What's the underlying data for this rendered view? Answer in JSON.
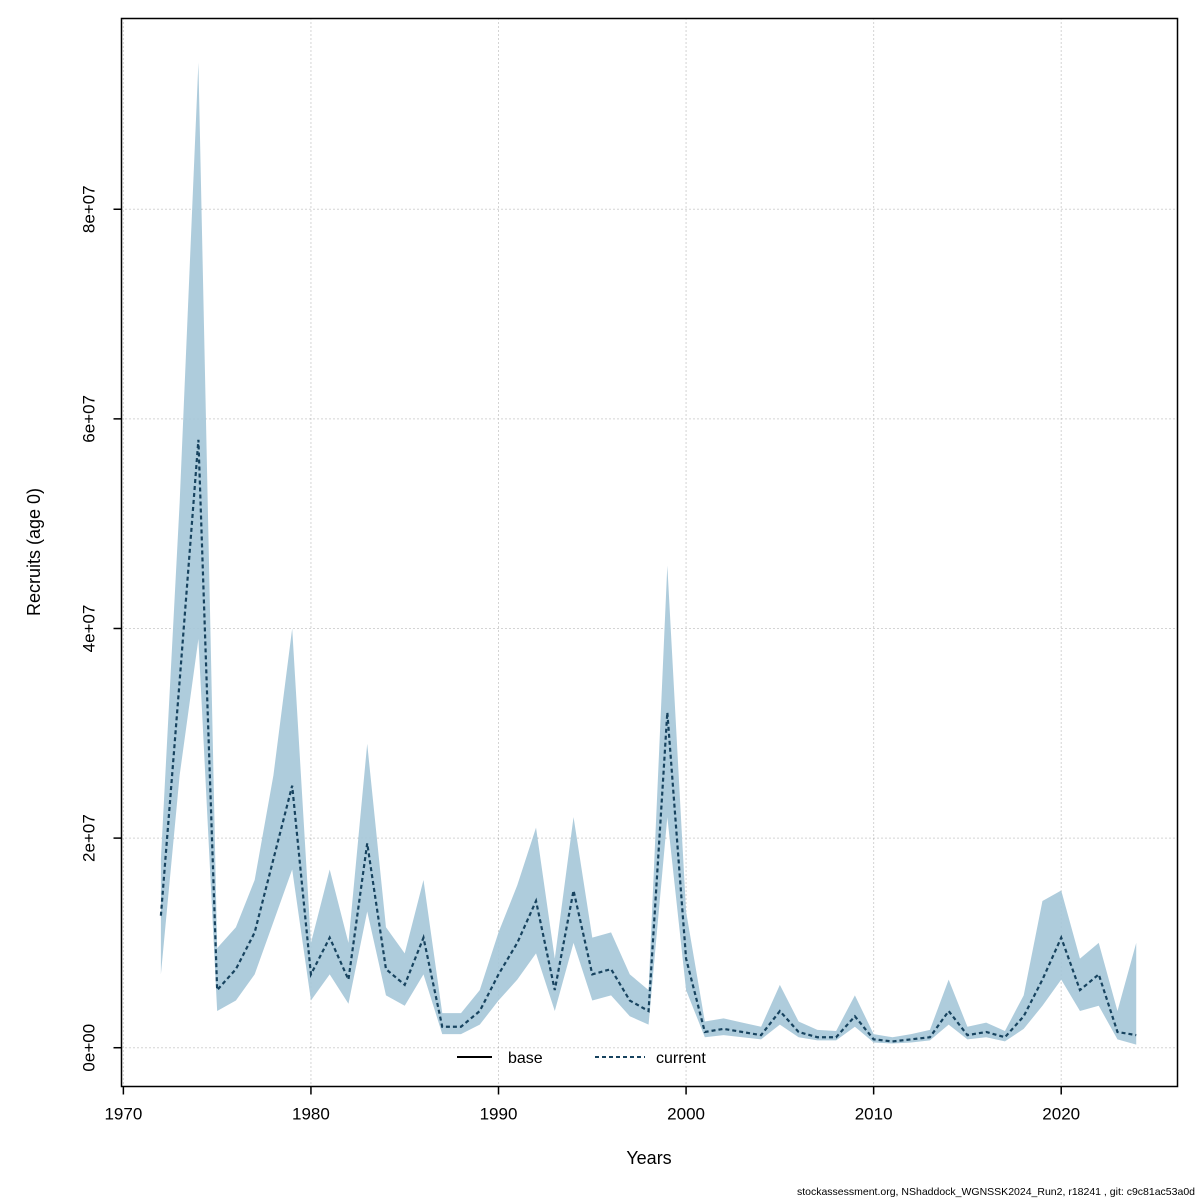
{
  "footer": "stockassessment.org, NShaddock_WGNSSK2024_Run2, r18241 , git: c9c81ac53a0d",
  "chart_data": {
    "type": "line",
    "title": "",
    "xlabel": "Years",
    "ylabel": "Recruits (age 0)",
    "xlim": [
      1969.9,
      2026.2
    ],
    "ylim": [
      -3700000,
      98200000
    ],
    "x_ticks": [
      1970,
      1980,
      1990,
      2000,
      2010,
      2020
    ],
    "y_tick_labels": [
      "0e+00",
      "2e+07",
      "4e+07",
      "6e+07",
      "8e+07"
    ],
    "y_tick_values": [
      0,
      20000000,
      40000000,
      60000000,
      80000000
    ],
    "grid": true,
    "legend_position": "bottom-center-inside",
    "legend": [
      {
        "label": "base",
        "color": "#000000",
        "dash": ""
      },
      {
        "label": "current",
        "color": "#17435f",
        "dash": "4,3"
      }
    ],
    "band_color": "#a5c6d8",
    "line_color": "#17435f",
    "series": [
      {
        "name": "current",
        "style": "dotted",
        "x": [
          1972,
          1973,
          1974,
          1975,
          1976,
          1977,
          1978,
          1979,
          1980,
          1981,
          1982,
          1983,
          1984,
          1985,
          1986,
          1987,
          1988,
          1989,
          1990,
          1991,
          1992,
          1993,
          1994,
          1995,
          1996,
          1997,
          1998,
          1999,
          2000,
          2001,
          2002,
          2003,
          2004,
          2005,
          2006,
          2007,
          2008,
          2009,
          2010,
          2011,
          2012,
          2013,
          2014,
          2015,
          2016,
          2017,
          2018,
          2019,
          2020,
          2021,
          2022,
          2023,
          2024
        ],
        "y": [
          12600000,
          35000000,
          58000000,
          5500000,
          7500000,
          11000000,
          18000000,
          25000000,
          7000000,
          10500000,
          6500000,
          19500000,
          7500000,
          6000000,
          10500000,
          2000000,
          2000000,
          3500000,
          7000000,
          10000000,
          14000000,
          5500000,
          15000000,
          7000000,
          7500000,
          4500000,
          3500000,
          32000000,
          8500000,
          1500000,
          1800000,
          1500000,
          1200000,
          3500000,
          1500000,
          1000000,
          1000000,
          3000000,
          800000,
          600000,
          800000,
          1000000,
          3500000,
          1200000,
          1500000,
          1000000,
          3000000,
          6500000,
          10500000,
          5500000,
          7000000,
          1500000,
          1200000
        ],
        "lo": [
          7000000,
          26000000,
          39000000,
          3500000,
          4500000,
          7000000,
          12000000,
          17000000,
          4500000,
          7000000,
          4200000,
          13000000,
          5000000,
          4000000,
          7000000,
          1300000,
          1300000,
          2200000,
          4500000,
          6500000,
          9000000,
          3500000,
          10000000,
          4500000,
          5000000,
          3000000,
          2200000,
          22000000,
          5500000,
          1000000,
          1200000,
          1000000,
          800000,
          2200000,
          1000000,
          700000,
          700000,
          2000000,
          500000,
          400000,
          500000,
          700000,
          2200000,
          800000,
          1000000,
          600000,
          1800000,
          4000000,
          6500000,
          3500000,
          4000000,
          800000,
          300000
        ],
        "hi": [
          18000000,
          52000000,
          94000000,
          9500000,
          11500000,
          16000000,
          26000000,
          40000000,
          10000000,
          17000000,
          10000000,
          29000000,
          11500000,
          9000000,
          16000000,
          3300000,
          3300000,
          5500000,
          11000000,
          15500000,
          21000000,
          8500000,
          22000000,
          10500000,
          11000000,
          7000000,
          5500000,
          46000000,
          13000000,
          2500000,
          2800000,
          2400000,
          2000000,
          6000000,
          2500000,
          1700000,
          1600000,
          5000000,
          1300000,
          1000000,
          1300000,
          1700000,
          6500000,
          2000000,
          2400000,
          1600000,
          5000000,
          14000000,
          15000000,
          8500000,
          10000000,
          3500000,
          10000000
        ]
      }
    ]
  }
}
